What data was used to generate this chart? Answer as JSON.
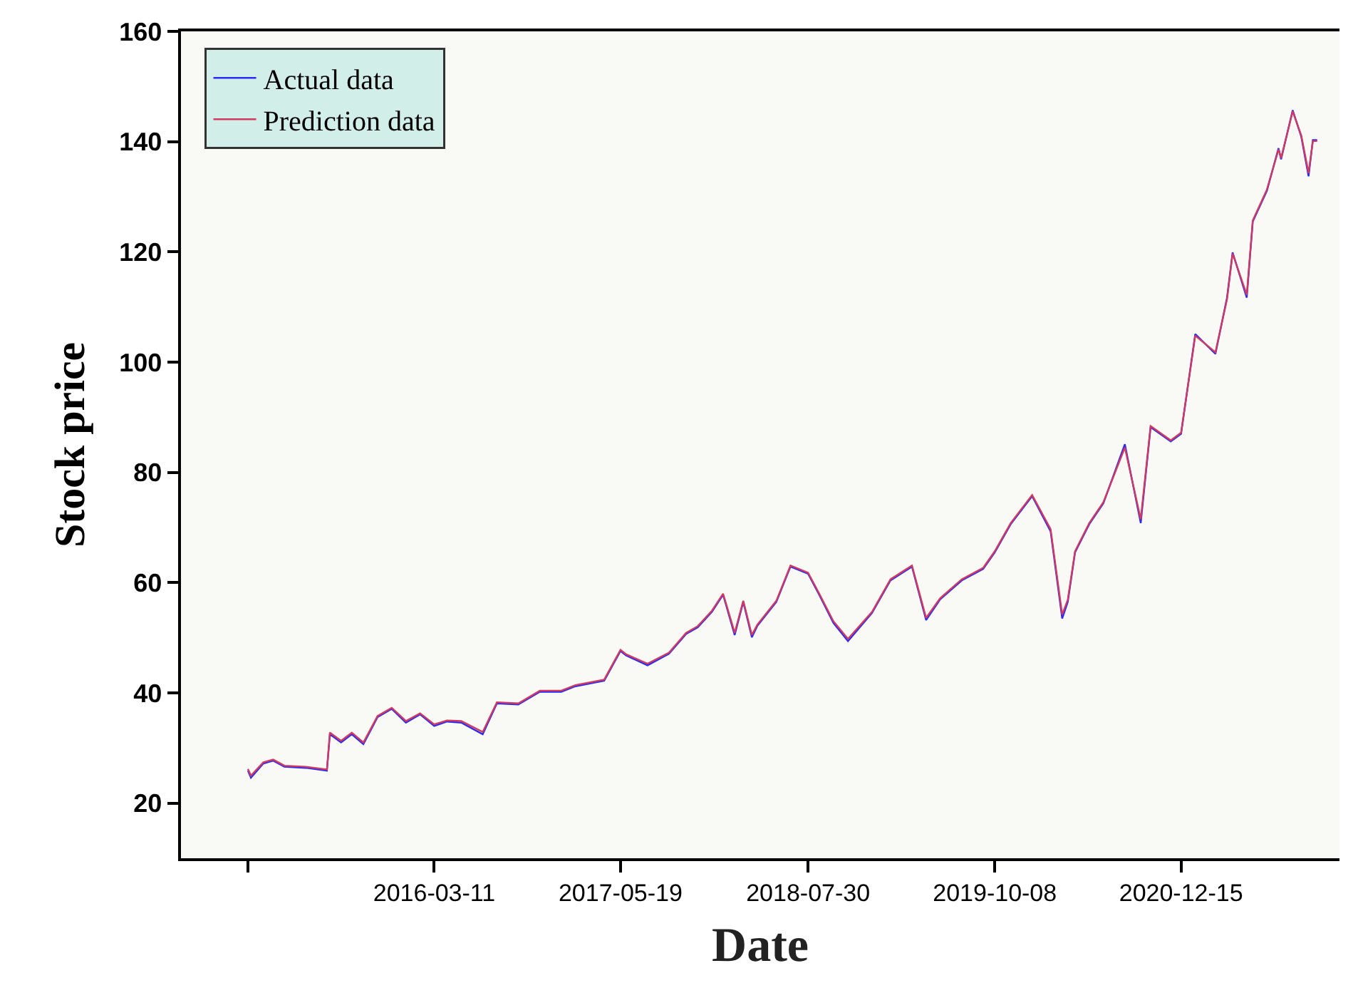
{
  "chart_data": {
    "type": "line",
    "xlabel": "Date",
    "ylabel": "Stock price",
    "x": [
      "2015-01-02",
      "2015-01-09",
      "2015-02-07",
      "2015-03-02",
      "2015-03-28",
      "2015-05-17",
      "2015-07-05",
      "2015-07-12",
      "2015-08-07",
      "2015-09-01",
      "2015-09-28",
      "2015-10-31",
      "2015-12-03",
      "2016-01-05",
      "2016-02-07",
      "2016-03-11",
      "2016-04-10",
      "2016-05-13",
      "2016-07-02",
      "2016-08-04",
      "2016-09-23",
      "2016-11-12",
      "2017-01-01",
      "2017-02-03",
      "2017-04-11",
      "2017-05-19",
      "2017-06-01",
      "2017-07-21",
      "2017-09-09",
      "2017-10-19",
      "2017-11-15",
      "2017-12-18",
      "2018-01-13",
      "2018-02-09",
      "2018-03-01",
      "2018-03-21",
      "2018-04-03",
      "2018-05-17",
      "2018-06-19",
      "2018-07-30",
      "2018-08-25",
      "2018-09-27",
      "2018-10-31",
      "2018-12-26",
      "2019-02-07",
      "2019-03-29",
      "2019-05-01",
      "2019-06-03",
      "2019-07-23",
      "2019-09-11",
      "2019-10-08",
      "2019-11-14",
      "2020-01-03",
      "2020-02-15",
      "2020-03-13",
      "2020-03-26",
      "2020-04-12",
      "2020-05-15",
      "2020-06-17",
      "2020-08-06",
      "2020-09-12",
      "2020-10-05",
      "2020-11-21",
      "2020-12-15",
      "2021-01-17",
      "2021-03-05",
      "2021-04-01",
      "2021-04-14",
      "2021-05-17",
      "2021-05-31",
      "2021-07-03",
      "2021-07-30",
      "2021-08-05",
      "2021-09-01",
      "2021-09-21",
      "2021-10-08",
      "2021-10-18",
      "2021-10-28"
    ],
    "series": [
      {
        "name": "Actual data",
        "color": "#2b2bf5",
        "values": [
          25.9,
          24.6,
          27.2,
          27.7,
          26.6,
          26.4,
          25.9,
          32.5,
          31.0,
          32.5,
          30.7,
          35.6,
          37.1,
          34.6,
          36.1,
          34.0,
          34.8,
          34.6,
          32.5,
          38.1,
          37.9,
          40.2,
          40.2,
          41.2,
          42.2,
          47.6,
          46.8,
          45.0,
          47.1,
          50.7,
          51.9,
          54.7,
          57.8,
          50.5,
          56.5,
          50.1,
          52.2,
          56.5,
          62.9,
          61.6,
          57.8,
          52.7,
          49.4,
          54.5,
          60.4,
          62.9,
          53.2,
          57.0,
          60.4,
          62.5,
          65.5,
          70.6,
          75.7,
          69.3,
          53.5,
          56.5,
          65.5,
          70.6,
          74.4,
          85.1,
          70.8,
          88.2,
          85.6,
          87.0,
          105.1,
          101.5,
          111.7,
          119.9,
          111.7,
          125.5,
          131.1,
          138.8,
          136.8,
          145.7,
          140.9,
          133.7,
          140.3,
          140.3
        ]
      },
      {
        "name": "Prediction data",
        "color": "#d03a60",
        "values": [
          26.2,
          25.0,
          27.4,
          27.9,
          26.8,
          26.6,
          26.1,
          32.8,
          31.3,
          32.8,
          31.0,
          35.8,
          37.3,
          34.9,
          36.3,
          34.3,
          35.0,
          34.9,
          32.9,
          38.3,
          38.1,
          40.4,
          40.4,
          41.4,
          42.4,
          47.8,
          47.0,
          45.3,
          47.3,
          50.9,
          52.1,
          54.9,
          58.0,
          50.9,
          56.7,
          50.5,
          52.4,
          56.7,
          63.1,
          61.8,
          58.0,
          53.0,
          49.8,
          54.7,
          60.6,
          63.1,
          53.6,
          57.2,
          60.6,
          62.7,
          65.7,
          70.8,
          75.9,
          69.7,
          54.2,
          56.9,
          65.7,
          70.8,
          74.6,
          84.5,
          71.5,
          88.4,
          85.8,
          87.2,
          104.8,
          101.8,
          111.4,
          119.7,
          112.2,
          125.7,
          131.3,
          138.6,
          137.0,
          145.5,
          141.1,
          134.3,
          140.1,
          140.1
        ]
      }
    ],
    "xlim": [
      "2014-07-30",
      "2021-12-19"
    ],
    "xticks": [
      {
        "value": "2015-01-02",
        "label": null
      },
      {
        "value": "2016-03-11",
        "label": "2016-03-11"
      },
      {
        "value": "2017-05-19",
        "label": "2017-05-19"
      },
      {
        "value": "2018-07-30",
        "label": "2018-07-30"
      },
      {
        "value": "2019-10-08",
        "label": "2019-10-08"
      },
      {
        "value": "2020-12-15",
        "label": "2020-12-15"
      }
    ],
    "ylim": [
      10,
      160
    ],
    "yticks": [
      20,
      40,
      60,
      80,
      100,
      120,
      140,
      160
    ],
    "grid": false,
    "legend": "top left",
    "marker": "none",
    "line_style": "solid"
  }
}
